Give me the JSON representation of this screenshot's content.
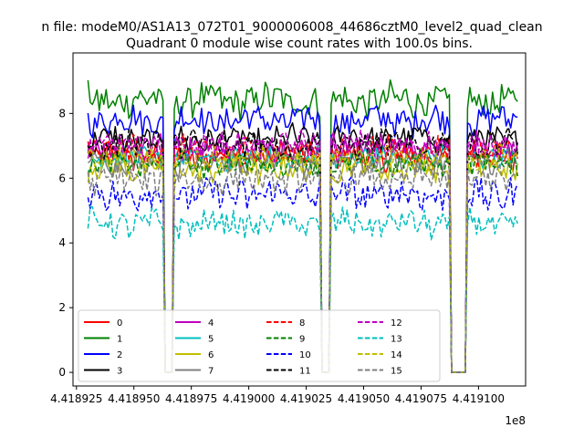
{
  "chart_data": {
    "type": "line",
    "suptitle": "n file: modeM0/AS1A13_072T01_9000006008_44686cztM0_level2_quad_clean",
    "title": "Quadrant 0 module wise count rates with 100.0s bins.",
    "xlabel": "",
    "ylabel": "",
    "x_offset_label": "1e8",
    "xlim": [
      4.4189235,
      4.4191205
    ],
    "ylim": [
      -0.42,
      9.87
    ],
    "x_ticks": [
      4.418925,
      4.41895,
      4.418975,
      4.419,
      4.419025,
      4.41905,
      4.419075,
      4.4191
    ],
    "x_tick_labels": [
      "4.418925",
      "4.418950",
      "4.418975",
      "4.419000",
      "4.419025",
      "4.419050",
      "4.419075",
      "4.419100"
    ],
    "y_ticks": [
      0,
      2,
      4,
      6,
      8
    ],
    "y_tick_labels": [
      "0",
      "2",
      "4",
      "6",
      "8"
    ],
    "grid": false,
    "legend_position": "lower-left",
    "legend_columns": 4,
    "x_range": [
      4.41893,
      4.419117
    ],
    "gaps": [
      [
        4.418963,
        4.418967
      ],
      [
        4.419031,
        4.419035
      ],
      [
        4.419088,
        4.419095
      ]
    ],
    "series": [
      {
        "name": "0",
        "color": "#ff0000",
        "style": "solid",
        "mean": 6.7,
        "amp": 0.35
      },
      {
        "name": "1",
        "color": "#008000",
        "style": "solid",
        "mean": 8.4,
        "amp": 0.45
      },
      {
        "name": "2",
        "color": "#0000ff",
        "style": "solid",
        "mean": 7.8,
        "amp": 0.4
      },
      {
        "name": "3",
        "color": "#000000",
        "style": "solid",
        "mean": 7.2,
        "amp": 0.35
      },
      {
        "name": "4",
        "color": "#bf00bf",
        "style": "solid",
        "mean": 6.95,
        "amp": 0.35
      },
      {
        "name": "5",
        "color": "#00bfbf",
        "style": "solid",
        "mean": 6.6,
        "amp": 0.3
      },
      {
        "name": "6",
        "color": "#bfbf00",
        "style": "solid",
        "mean": 6.3,
        "amp": 0.35
      },
      {
        "name": "7",
        "color": "#808080",
        "style": "solid",
        "mean": 6.5,
        "amp": 0.3
      },
      {
        "name": "8",
        "color": "#ff0000",
        "style": "dashed",
        "mean": 6.85,
        "amp": 0.35
      },
      {
        "name": "9",
        "color": "#008000",
        "style": "dashed",
        "mean": 6.45,
        "amp": 0.3
      },
      {
        "name": "10",
        "color": "#0000ff",
        "style": "dashed",
        "mean": 5.5,
        "amp": 0.45
      },
      {
        "name": "11",
        "color": "#000000",
        "style": "dashed",
        "mean": 7.05,
        "amp": 0.35
      },
      {
        "name": "12",
        "color": "#bf00bf",
        "style": "dashed",
        "mean": 7.0,
        "amp": 0.35
      },
      {
        "name": "13",
        "color": "#00bfbf",
        "style": "dashed",
        "mean": 4.6,
        "amp": 0.35
      },
      {
        "name": "14",
        "color": "#bfbf00",
        "style": "dashed",
        "mean": 6.6,
        "amp": 0.3
      },
      {
        "name": "15",
        "color": "#808080",
        "style": "dashed",
        "mean": 5.95,
        "amp": 0.35
      }
    ]
  }
}
